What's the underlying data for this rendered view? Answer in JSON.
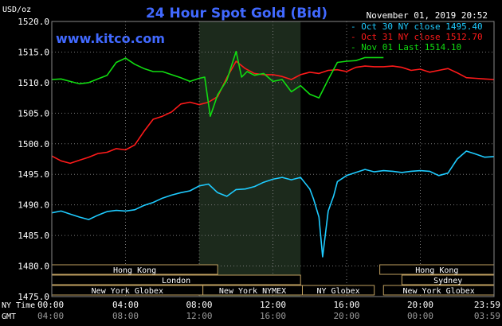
{
  "chart_data": {
    "type": "line",
    "title": "24 Hour Spot Gold (Bid)",
    "website": "www.kitco.com",
    "timestamp": "November 01, 2019 20:52",
    "ylabel": "USD/oz",
    "ylim": [
      1475,
      1520
    ],
    "yticks": [
      1475,
      1480,
      1485,
      1490,
      1495,
      1500,
      1505,
      1510,
      1515,
      1520
    ],
    "ytick_labels": [
      "1475.0",
      "1480.0",
      "1485.0",
      "1490.0",
      "1495.0",
      "1500.0",
      "1505.0",
      "1510.0",
      "1515.0",
      "1520.0"
    ],
    "xlim": [
      0,
      24
    ],
    "xticks": [
      0,
      4,
      8,
      12,
      16,
      20,
      24
    ],
    "ny_time_prefix": "NY Time",
    "gmt_prefix": "GMT",
    "ny_tick_labels": [
      "00:00",
      "04:00",
      "08:00",
      "12:00",
      "16:00",
      "20:00",
      "23:59"
    ],
    "gmt_tick_labels": [
      "04:00",
      "08:00",
      "12:00",
      "16:00",
      "20:00",
      "00:00",
      "03:59"
    ],
    "grid": true,
    "legend_position": "top-right",
    "colors": {
      "background": "#000000",
      "session_shade": "#1c2a1c",
      "title": "#4169ff",
      "axis_text": "#ffffff",
      "session_box": "#c0a060"
    },
    "shaded_region": [
      8.0,
      13.5
    ],
    "series": [
      {
        "name": "Oct 30 NY close",
        "legend_label": "- Oct 30 NY close 1495.40",
        "color": "#1ecbff",
        "x": [
          0,
          0.5,
          1,
          1.5,
          2,
          2.5,
          3,
          3.5,
          4,
          4.5,
          5,
          5.5,
          6,
          6.5,
          7,
          7.5,
          8,
          8.5,
          9,
          9.5,
          10,
          10.5,
          11,
          11.5,
          12,
          12.5,
          13,
          13.5,
          14,
          14.2,
          14.5,
          14.7,
          15,
          15.3,
          15.5,
          16,
          16.5,
          17,
          17.5,
          18,
          18.5,
          19,
          19.5,
          20,
          20.5,
          21,
          21.5,
          22,
          22.5,
          23,
          23.5,
          24
        ],
        "y": [
          1488.7,
          1489,
          1488.5,
          1488,
          1487.6,
          1488.3,
          1488.9,
          1489.1,
          1489,
          1489.2,
          1489.9,
          1490.4,
          1491.1,
          1491.6,
          1492,
          1492.3,
          1493.1,
          1493.4,
          1492,
          1491.4,
          1492.5,
          1492.6,
          1493,
          1493.7,
          1494.2,
          1494.5,
          1494.1,
          1494.5,
          1492.6,
          1491,
          1488,
          1481.5,
          1489,
          1491.5,
          1493.8,
          1494.8,
          1495.3,
          1495.8,
          1495.4,
          1495.6,
          1495.5,
          1495.3,
          1495.5,
          1495.6,
          1495.5,
          1494.8,
          1495.2,
          1497.5,
          1498.8,
          1498.3,
          1497.8,
          1497.9
        ]
      },
      {
        "name": "Oct 31 NY close",
        "legend_label": "- Oct 31 NY close 1512.70",
        "color": "#ff1a1a",
        "x": [
          0,
          0.5,
          1,
          1.5,
          2,
          2.5,
          3,
          3.5,
          4,
          4.5,
          5,
          5.5,
          6,
          6.5,
          7,
          7.5,
          8,
          8.5,
          9,
          9.5,
          10,
          10.5,
          11,
          11.5,
          12,
          12.5,
          13,
          13.5,
          14,
          14.5,
          15,
          15.5,
          16,
          16.5,
          17,
          17.5,
          18,
          18.5,
          19,
          19.5,
          20,
          20.5,
          21,
          21.5,
          22,
          22.5,
          23,
          23.5,
          24
        ],
        "y": [
          1498,
          1497.2,
          1496.8,
          1497.3,
          1497.8,
          1498.4,
          1498.6,
          1499.2,
          1499,
          1499.8,
          1502,
          1504,
          1504.5,
          1505.2,
          1506.5,
          1506.8,
          1506.4,
          1506.8,
          1507.7,
          1510.8,
          1513.5,
          1512.3,
          1511.5,
          1511.3,
          1511.3,
          1511,
          1510.5,
          1511.3,
          1511.7,
          1511.5,
          1512,
          1512.1,
          1511.8,
          1512.5,
          1512.7,
          1512.6,
          1512.6,
          1512.7,
          1512.5,
          1512,
          1512.2,
          1511.7,
          1512,
          1512.3,
          1511.6,
          1510.8,
          1510.7,
          1510.6,
          1510.5
        ]
      },
      {
        "name": "Nov 01 Last",
        "legend_label": "- Nov 01 Last 1514.10",
        "color": "#11dd11",
        "x": [
          0,
          0.5,
          1,
          1.5,
          2,
          2.5,
          3,
          3.5,
          4,
          4.5,
          5,
          5.5,
          6,
          6.5,
          7,
          7.5,
          8,
          8.3,
          8.6,
          9,
          9.5,
          10,
          10.3,
          10.6,
          11,
          11.5,
          12,
          12.5,
          13,
          13.5,
          14,
          14.5,
          15,
          15.5,
          16,
          16.5,
          17,
          17.5,
          18
        ],
        "y": [
          1510.5,
          1510.6,
          1510.2,
          1509.8,
          1510,
          1510.6,
          1511.2,
          1513.3,
          1514,
          1513,
          1512.3,
          1511.8,
          1511.8,
          1511.3,
          1510.8,
          1510.2,
          1510.7,
          1510.9,
          1504.5,
          1508,
          1510.4,
          1515.1,
          1510.9,
          1511.8,
          1511.2,
          1511.5,
          1510.2,
          1510.5,
          1508.5,
          1509.5,
          1508.1,
          1507.5,
          1510.5,
          1513.3,
          1513.5,
          1513.6,
          1514.1,
          1514.1,
          1514.1
        ]
      }
    ],
    "session_rows": [
      [
        {
          "label": "Hong Kong",
          "start": 0,
          "end": 9
        },
        {
          "label": "Hong Kong",
          "start": 17.8,
          "end": 24
        }
      ],
      [
        {
          "label": "London",
          "start": 0,
          "end": 13.5
        },
        {
          "label": "Sydney",
          "start": 19,
          "end": 24
        }
      ],
      [
        {
          "label": "New York Globex",
          "start": 0,
          "end": 8.2
        },
        {
          "label": "New York NYMEX",
          "start": 8.2,
          "end": 13.6
        },
        {
          "label": "NY Globex",
          "start": 13.6,
          "end": 17.5
        },
        {
          "label": "New York Globex",
          "start": 18,
          "end": 24
        }
      ]
    ]
  }
}
